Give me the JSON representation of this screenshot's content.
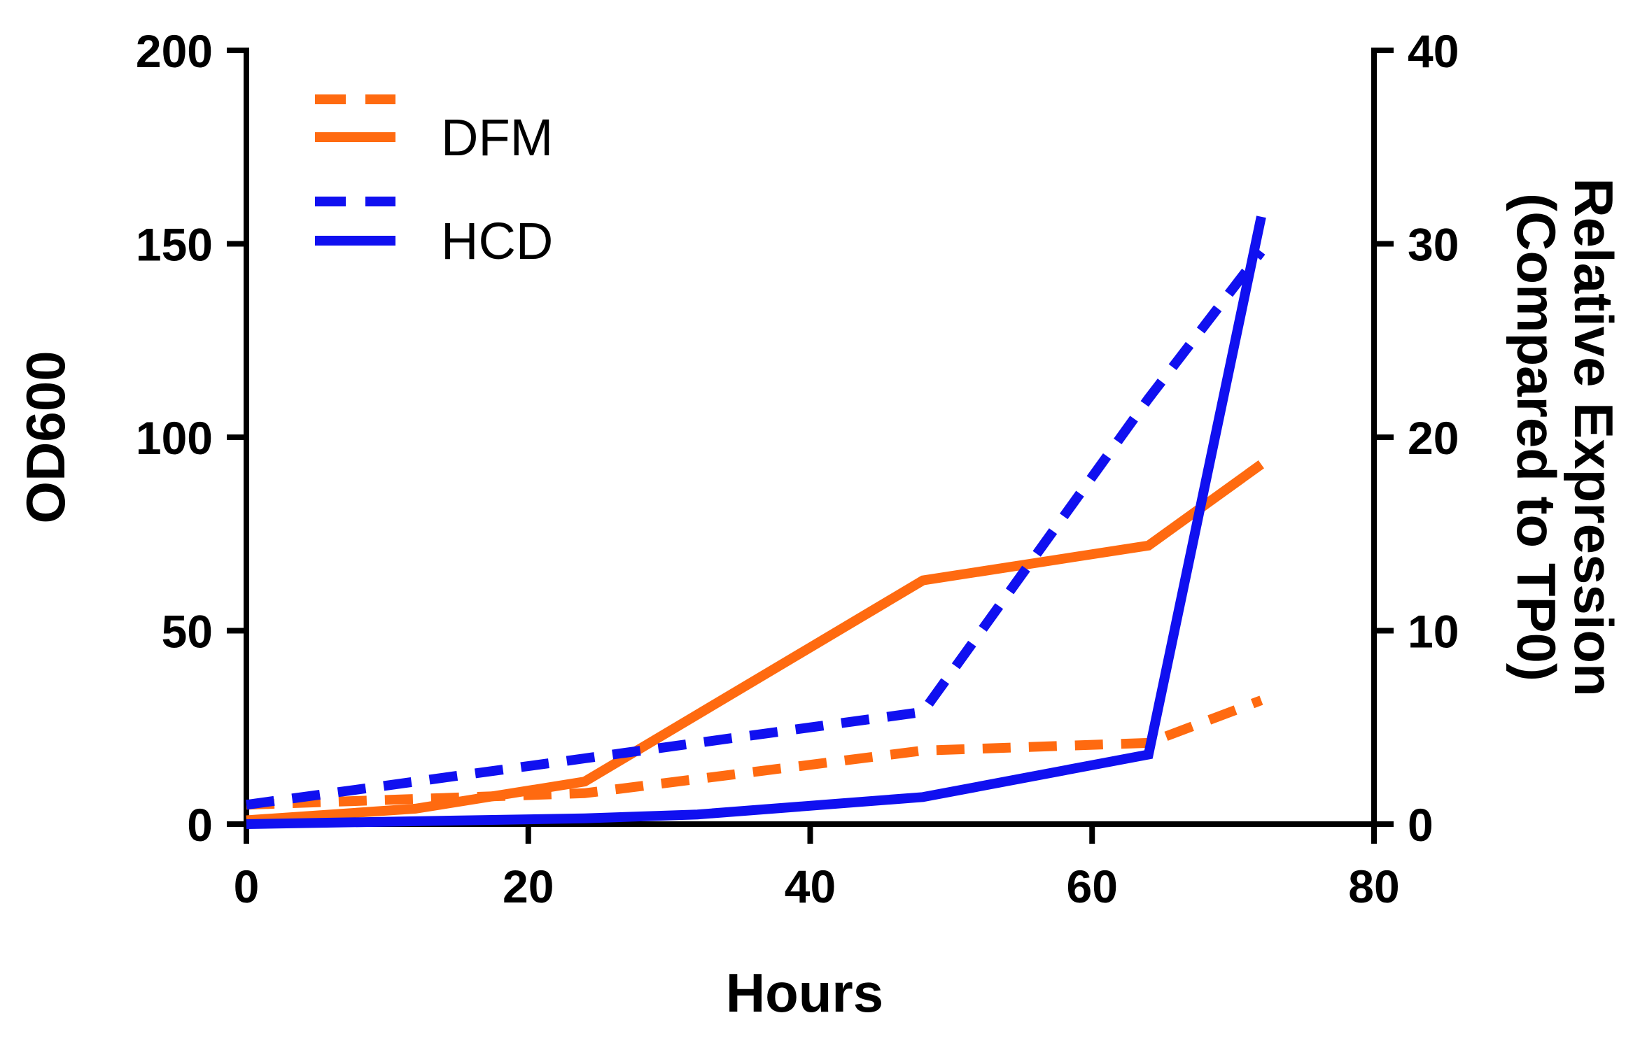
{
  "chart_data": {
    "type": "line",
    "x_axis": {
      "label": "Hours",
      "min": 0,
      "max": 80,
      "ticks": [
        0,
        20,
        40,
        60,
        80
      ]
    },
    "y_axis_left": {
      "label": "OD600",
      "min": 0,
      "max": 200,
      "ticks": [
        0,
        50,
        100,
        150,
        200
      ]
    },
    "y_axis_right": {
      "label_line1": "Relative Expression",
      "label_line2": "(Compared to TP0)",
      "min": 0,
      "max": 40,
      "ticks": [
        0,
        10,
        20,
        30,
        40
      ]
    },
    "legend": {
      "position": "top-left",
      "entries": [
        {
          "series": "DFM-expression",
          "label": ""
        },
        {
          "series": "DFM-od",
          "label": "DFM"
        },
        {
          "series": "HCD-expression",
          "label": ""
        },
        {
          "series": "HCD-od",
          "label": "HCD"
        }
      ]
    },
    "series": [
      {
        "id": "DFM-expression",
        "name": "DFM relative expression",
        "axis": "right",
        "style": "dashed",
        "color": "#FF6A10",
        "x": [
          0,
          24,
          48,
          64,
          72
        ],
        "y": [
          1.0,
          1.6,
          3.8,
          4.2,
          6.4
        ]
      },
      {
        "id": "DFM-od",
        "name": "DFM OD600",
        "axis": "left",
        "style": "solid",
        "color": "#FF6A10",
        "x": [
          0,
          12,
          24,
          48,
          64,
          72
        ],
        "y": [
          1,
          4,
          11,
          63,
          72,
          93
        ]
      },
      {
        "id": "HCD-expression",
        "name": "HCD relative expression",
        "axis": "right",
        "style": "dashed",
        "color": "#1010F0",
        "x": [
          0,
          24,
          48,
          64,
          72
        ],
        "y": [
          1.0,
          3.4,
          5.8,
          22.0,
          29.6
        ]
      },
      {
        "id": "HCD-od",
        "name": "HCD OD600",
        "axis": "left",
        "style": "solid",
        "color": "#1010F0",
        "x": [
          0,
          24,
          32,
          48,
          64,
          72
        ],
        "y": [
          0,
          1.5,
          2.5,
          7,
          18,
          157
        ]
      }
    ]
  }
}
